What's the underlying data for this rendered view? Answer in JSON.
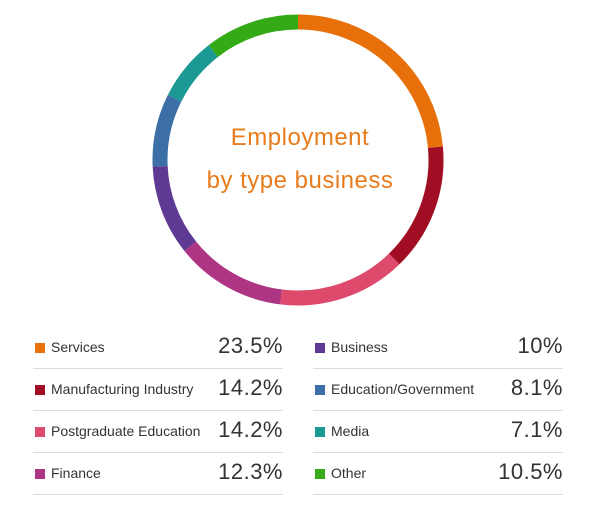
{
  "chart_data": {
    "type": "pie",
    "title": "Employment by type business",
    "title_lines": [
      "Employment",
      "by type business"
    ],
    "title_color": "#e87b1c",
    "categories": [
      "Services",
      "Manufacturing Industry",
      "Postgraduate Education",
      "Finance",
      "Business",
      "Education/Government",
      "Media",
      "Other"
    ],
    "values": [
      23.5,
      14.2,
      14.2,
      12.3,
      10,
      8.1,
      7.1,
      10.5
    ],
    "value_labels": [
      "23.5%",
      "14.2%",
      "14.2%",
      "12.3%",
      "10%",
      "8.1%",
      "7.1%",
      "10.5%"
    ],
    "colors": [
      "#e8700a",
      "#a10e24",
      "#dd4a6b",
      "#ad3583",
      "#5e3a94",
      "#3c6fa5",
      "#1c9995",
      "#33aa16"
    ],
    "legend_placement": "bottom"
  }
}
